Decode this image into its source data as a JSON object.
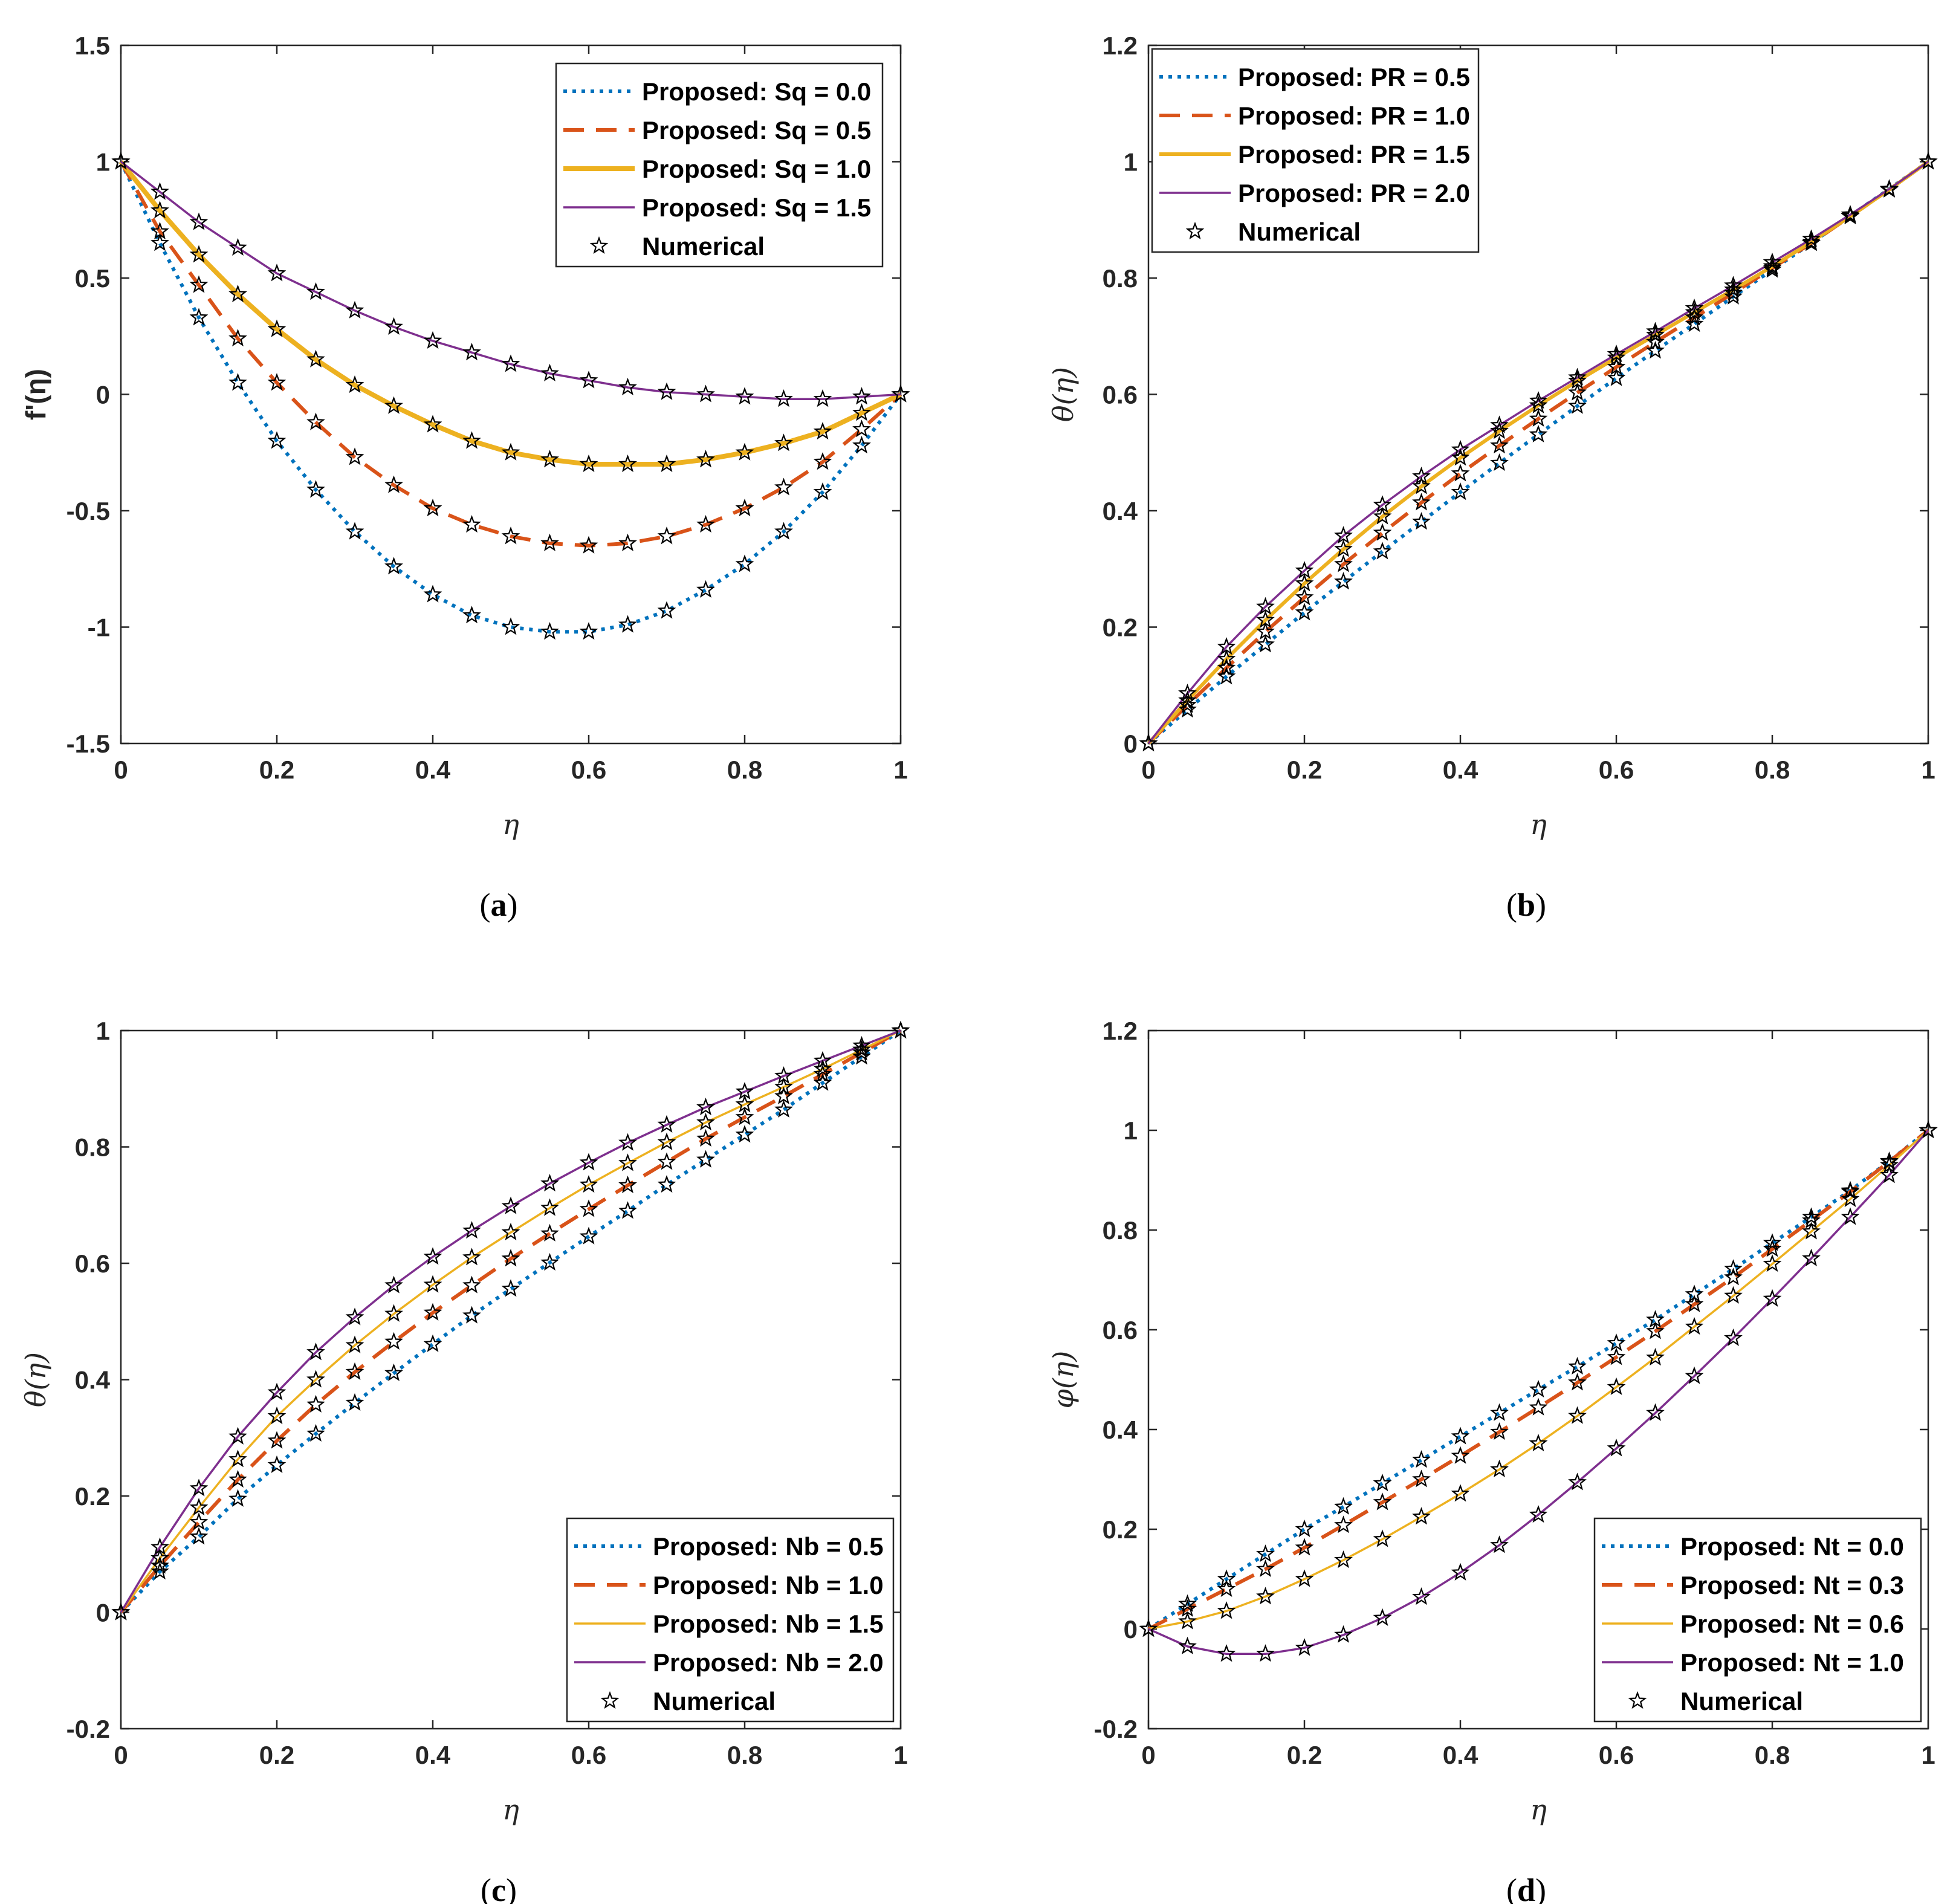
{
  "figure": {
    "panels": [
      "a",
      "b",
      "c",
      "d"
    ]
  },
  "chart_data": [
    {
      "id": "a",
      "type": "line",
      "caption": "(a)",
      "caption_letter": "a",
      "xlabel": "η",
      "ylabel": "f'(η)",
      "xlim": [
        0,
        1
      ],
      "ylim": [
        -1.5,
        1.5
      ],
      "xticks": [
        0,
        0.2,
        0.4,
        0.6,
        0.8,
        1
      ],
      "xtick_labels": [
        "0",
        "0.2",
        "0.4",
        "0.6",
        "0.8",
        "1"
      ],
      "yticks": [
        -1.5,
        -1,
        -0.5,
        0,
        0.5,
        1,
        1.5
      ],
      "ytick_labels": [
        "-1.5",
        "-1",
        "-0.5",
        "0",
        "0.5",
        "1",
        "1.5"
      ],
      "legend_position": "top-right",
      "numerical_label": "Numerical",
      "x": [
        0,
        0.05,
        0.1,
        0.15,
        0.2,
        0.25,
        0.3,
        0.35,
        0.4,
        0.45,
        0.5,
        0.55,
        0.6,
        0.65,
        0.7,
        0.75,
        0.8,
        0.85,
        0.9,
        0.95,
        1
      ],
      "series": [
        {
          "name": "Proposed: Sq = 0.0",
          "style": "dotted",
          "color": "#0072BD",
          "width": 6,
          "values": [
            1,
            0.65,
            0.33,
            0.05,
            -0.2,
            -0.41,
            -0.59,
            -0.74,
            -0.86,
            -0.95,
            -1.0,
            -1.02,
            -1.02,
            -0.99,
            -0.93,
            -0.84,
            -0.73,
            -0.59,
            -0.42,
            -0.22,
            0
          ]
        },
        {
          "name": "Proposed: Sq = 0.5",
          "style": "dashed",
          "color": "#D95319",
          "width": 6,
          "values": [
            1,
            0.7,
            0.47,
            0.24,
            0.05,
            -0.12,
            -0.27,
            -0.39,
            -0.49,
            -0.56,
            -0.61,
            -0.64,
            -0.65,
            -0.64,
            -0.61,
            -0.56,
            -0.49,
            -0.4,
            -0.29,
            -0.15,
            0
          ]
        },
        {
          "name": "Proposed: Sq = 1.0",
          "style": "solid",
          "color": "#EDB120",
          "width": 8,
          "values": [
            1,
            0.79,
            0.6,
            0.43,
            0.28,
            0.15,
            0.04,
            -0.05,
            -0.13,
            -0.2,
            -0.25,
            -0.28,
            -0.3,
            -0.3,
            -0.3,
            -0.28,
            -0.25,
            -0.21,
            -0.16,
            -0.08,
            0
          ]
        },
        {
          "name": "Proposed: Sq = 1.5",
          "style": "solid",
          "color": "#7E2F8E",
          "width": 3.5,
          "values": [
            1,
            0.87,
            0.74,
            0.63,
            0.52,
            0.44,
            0.36,
            0.29,
            0.23,
            0.18,
            0.13,
            0.09,
            0.06,
            0.03,
            0.01,
            0.0,
            -0.01,
            -0.02,
            -0.02,
            -0.01,
            0
          ]
        }
      ]
    },
    {
      "id": "b",
      "type": "line",
      "caption": "(b)",
      "caption_letter": "b",
      "xlabel": "η",
      "ylabel": "θ(η)",
      "xlim": [
        0,
        1
      ],
      "ylim": [
        0,
        1.2
      ],
      "xticks": [
        0,
        0.2,
        0.4,
        0.6,
        0.8,
        1
      ],
      "xtick_labels": [
        "0",
        "0.2",
        "0.4",
        "0.6",
        "0.8",
        "1"
      ],
      "yticks": [
        0,
        0.2,
        0.4,
        0.6,
        0.8,
        1,
        1.2
      ],
      "ytick_labels": [
        "0",
        "0.2",
        "0.4",
        "0.6",
        "0.8",
        "1",
        "1.2"
      ],
      "legend_position": "top-left",
      "numerical_label": "Numerical",
      "x": [
        0,
        0.05,
        0.1,
        0.15,
        0.2,
        0.25,
        0.3,
        0.35,
        0.4,
        0.45,
        0.5,
        0.55,
        0.6,
        0.65,
        0.7,
        0.75,
        0.8,
        0.85,
        0.9,
        0.95,
        1
      ],
      "series": [
        {
          "name": "Proposed: PR = 0.5",
          "style": "dotted",
          "color": "#0072BD",
          "width": 6,
          "values": [
            0,
            0.058,
            0.115,
            0.17,
            0.225,
            0.278,
            0.33,
            0.381,
            0.432,
            0.482,
            0.531,
            0.58,
            0.628,
            0.675,
            0.721,
            0.768,
            0.814,
            0.86,
            0.907,
            0.953,
            1
          ]
        },
        {
          "name": "Proposed: PR = 1.0",
          "style": "dashed",
          "color": "#D95319",
          "width": 6,
          "values": [
            0,
            0.066,
            0.13,
            0.192,
            0.251,
            0.308,
            0.362,
            0.414,
            0.464,
            0.512,
            0.558,
            0.603,
            0.647,
            0.69,
            0.732,
            0.774,
            0.817,
            0.86,
            0.906,
            0.952,
            1
          ]
        },
        {
          "name": "Proposed: PR = 1.5",
          "style": "solid",
          "color": "#EDB120",
          "width": 6,
          "values": [
            0,
            0.074,
            0.145,
            0.212,
            0.275,
            0.334,
            0.39,
            0.442,
            0.491,
            0.537,
            0.581,
            0.623,
            0.663,
            0.702,
            0.741,
            0.78,
            0.82,
            0.862,
            0.906,
            0.952,
            1
          ]
        },
        {
          "name": "Proposed: PR = 2.0",
          "style": "solid",
          "color": "#7E2F8E",
          "width": 3.5,
          "values": [
            0,
            0.086,
            0.166,
            0.235,
            0.297,
            0.357,
            0.41,
            0.459,
            0.505,
            0.547,
            0.589,
            0.629,
            0.669,
            0.708,
            0.748,
            0.787,
            0.827,
            0.867,
            0.909,
            0.953,
            1
          ]
        }
      ]
    },
    {
      "id": "c",
      "type": "line",
      "caption": "(c)",
      "caption_letter": "c",
      "xlabel": "η",
      "ylabel": "θ(η)",
      "xlim": [
        0,
        1
      ],
      "ylim": [
        -0.2,
        1
      ],
      "xticks": [
        0,
        0.2,
        0.4,
        0.6,
        0.8,
        1
      ],
      "xtick_labels": [
        "0",
        "0.2",
        "0.4",
        "0.6",
        "0.8",
        "1"
      ],
      "yticks": [
        -0.2,
        0,
        0.2,
        0.4,
        0.6,
        0.8,
        1
      ],
      "ytick_labels": [
        "-0.2",
        "0",
        "0.2",
        "0.4",
        "0.6",
        "0.8",
        "1"
      ],
      "legend_position": "bottom-right",
      "numerical_label": "Numerical",
      "x": [
        0,
        0.05,
        0.1,
        0.15,
        0.2,
        0.25,
        0.3,
        0.35,
        0.4,
        0.45,
        0.5,
        0.55,
        0.6,
        0.65,
        0.7,
        0.75,
        0.8,
        0.85,
        0.9,
        0.95,
        1
      ],
      "series": [
        {
          "name": "Proposed: Nb = 0.5",
          "style": "dotted",
          "color": "#0072BD",
          "width": 6,
          "values": [
            0,
            0.07,
            0.13,
            0.195,
            0.253,
            0.307,
            0.36,
            0.411,
            0.461,
            0.51,
            0.556,
            0.601,
            0.646,
            0.69,
            0.735,
            0.778,
            0.821,
            0.864,
            0.91,
            0.955,
            1
          ]
        },
        {
          "name": "Proposed: Nb = 1.0",
          "style": "dashed",
          "color": "#D95319",
          "width": 6,
          "values": [
            0,
            0.08,
            0.155,
            0.228,
            0.295,
            0.357,
            0.413,
            0.465,
            0.515,
            0.562,
            0.608,
            0.651,
            0.693,
            0.734,
            0.774,
            0.814,
            0.851,
            0.887,
            0.925,
            0.962,
            1
          ]
        },
        {
          "name": "Proposed: Nb = 1.5",
          "style": "solid",
          "color": "#EDB120",
          "width": 3.5,
          "values": [
            0,
            0.093,
            0.18,
            0.263,
            0.337,
            0.4,
            0.459,
            0.513,
            0.563,
            0.61,
            0.653,
            0.695,
            0.735,
            0.772,
            0.808,
            0.842,
            0.873,
            0.903,
            0.934,
            0.967,
            1
          ]
        },
        {
          "name": "Proposed: Nb = 2.0",
          "style": "solid",
          "color": "#7E2F8E",
          "width": 3.5,
          "values": [
            0,
            0.112,
            0.213,
            0.302,
            0.378,
            0.447,
            0.507,
            0.562,
            0.611,
            0.656,
            0.698,
            0.737,
            0.773,
            0.807,
            0.838,
            0.868,
            0.895,
            0.922,
            0.948,
            0.974,
            1
          ]
        }
      ]
    },
    {
      "id": "d",
      "type": "line",
      "caption": "(d)",
      "caption_letter": "d",
      "xlabel": "η",
      "ylabel": "φ(η)",
      "xlim": [
        0,
        1
      ],
      "ylim": [
        -0.2,
        1.2
      ],
      "xticks": [
        0,
        0.2,
        0.4,
        0.6,
        0.8,
        1
      ],
      "xtick_labels": [
        "0",
        "0.2",
        "0.4",
        "0.6",
        "0.8",
        "1"
      ],
      "yticks": [
        -0.2,
        0,
        0.2,
        0.4,
        0.6,
        0.8,
        1,
        1.2
      ],
      "ytick_labels": [
        "-0.2",
        "0",
        "0.2",
        "0.4",
        "0.6",
        "0.8",
        "1",
        "1.2"
      ],
      "legend_position": "bottom-right",
      "numerical_label": "Numerical",
      "x": [
        0,
        0.05,
        0.1,
        0.15,
        0.2,
        0.25,
        0.3,
        0.35,
        0.4,
        0.45,
        0.5,
        0.55,
        0.6,
        0.65,
        0.7,
        0.75,
        0.8,
        0.85,
        0.9,
        0.95,
        1
      ],
      "series": [
        {
          "name": "Proposed: Nt = 0.0",
          "style": "dotted",
          "color": "#0072BD",
          "width": 6,
          "values": [
            0,
            0.05,
            0.1,
            0.15,
            0.2,
            0.245,
            0.292,
            0.339,
            0.386,
            0.433,
            0.48,
            0.526,
            0.573,
            0.62,
            0.671,
            0.722,
            0.774,
            0.826,
            0.879,
            0.938,
            1
          ]
        },
        {
          "name": "Proposed: Nt = 0.3",
          "style": "dashed",
          "color": "#D95319",
          "width": 6,
          "values": [
            0,
            0.04,
            0.08,
            0.12,
            0.163,
            0.208,
            0.254,
            0.3,
            0.347,
            0.395,
            0.444,
            0.494,
            0.545,
            0.597,
            0.651,
            0.705,
            0.762,
            0.819,
            0.877,
            0.937,
            1
          ]
        },
        {
          "name": "Proposed: Nt = 0.6",
          "style": "solid",
          "color": "#EDB120",
          "width": 3.5,
          "values": [
            0,
            0.015,
            0.036,
            0.065,
            0.1,
            0.138,
            0.18,
            0.225,
            0.271,
            0.32,
            0.372,
            0.427,
            0.485,
            0.544,
            0.606,
            0.668,
            0.732,
            0.797,
            0.862,
            0.93,
            1
          ]
        },
        {
          "name": "Proposed: Nt = 1.0",
          "style": "solid",
          "color": "#7E2F8E",
          "width": 3.5,
          "values": [
            0,
            -0.035,
            -0.05,
            -0.05,
            -0.038,
            -0.012,
            0.022,
            0.064,
            0.113,
            0.168,
            0.229,
            0.294,
            0.362,
            0.433,
            0.507,
            0.583,
            0.662,
            0.743,
            0.826,
            0.91,
            1
          ]
        }
      ]
    }
  ]
}
